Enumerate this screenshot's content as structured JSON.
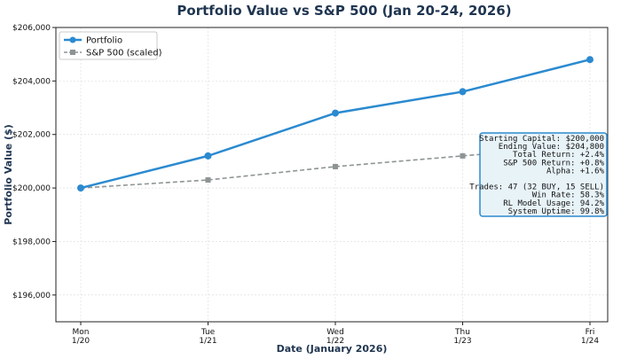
{
  "chart_data": {
    "type": "line",
    "title": "Portfolio Value vs S&P 500 (Jan 20-24, 2026)",
    "xlabel": "Date (January 2026)",
    "ylabel": "Portfolio Value ($)",
    "categories": [
      {
        "day": "Mon",
        "date": "1/20"
      },
      {
        "day": "Tue",
        "date": "1/21"
      },
      {
        "day": "Wed",
        "date": "1/22"
      },
      {
        "day": "Thu",
        "date": "1/23"
      },
      {
        "day": "Fri",
        "date": "1/24"
      }
    ],
    "ylim": [
      195000,
      206000
    ],
    "yticks": [
      196000,
      198000,
      200000,
      202000,
      204000,
      206000
    ],
    "ytick_labels": [
      "$196,000",
      "$198,000",
      "$200,000",
      "$202,000",
      "$204,000",
      "$206,000"
    ],
    "grid": true,
    "legend_position": "top-left",
    "series": [
      {
        "name": "Portfolio",
        "color": "#2b8ad0",
        "style": "solid",
        "marker": "circle",
        "values": [
          200000,
          201200,
          202800,
          203600,
          204800
        ]
      },
      {
        "name": "S&P 500 (scaled)",
        "color": "#8e9494",
        "style": "dashed",
        "marker": "square",
        "values": [
          200000,
          200300,
          200800,
          201200,
          201600
        ]
      }
    ],
    "annotation": {
      "position": "right",
      "lines": [
        "Starting Capital: $200,000",
        "Ending Value: $204,800",
        "Total Return: +2.4%",
        "S&P 500 Return: +0.8%",
        "Alpha: +1.6%",
        "",
        "Trades: 47 (32 BUY, 15 SELL)",
        "Win Rate: 58.3%",
        "RL Model Usage: 94.2%",
        "System Uptime: 99.8%"
      ],
      "border_color": "#2b8ad0",
      "fill_color": "#e8f3f8"
    }
  }
}
